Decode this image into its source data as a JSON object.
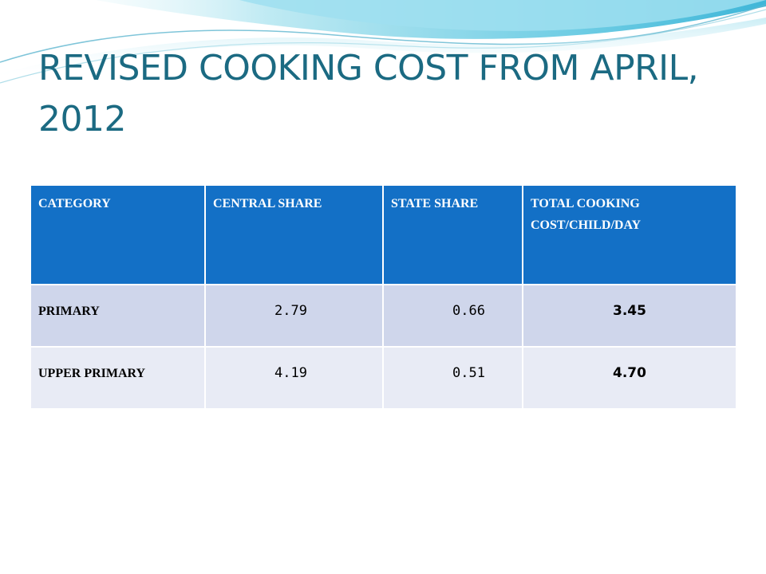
{
  "slide": {
    "title": "REVISED COOKING COST FROM APRIL, 2012"
  },
  "table": {
    "headers": [
      "CATEGORY",
      "CENTRAL SHARE",
      "STATE SHARE",
      "TOTAL COOKING COST/CHILD/DAY"
    ],
    "rows": [
      [
        "PRIMARY",
        "2.79",
        "0.66",
        "3.45"
      ],
      [
        "UPPER PRIMARY",
        "4.19",
        "0.51",
        "4.70"
      ]
    ]
  },
  "colors": {
    "title": "#1b6a82",
    "header_bg": "#1370c6",
    "row_odd": "#cfd6eb",
    "row_even": "#e8ebf5",
    "wave": "#7fd3e6"
  }
}
